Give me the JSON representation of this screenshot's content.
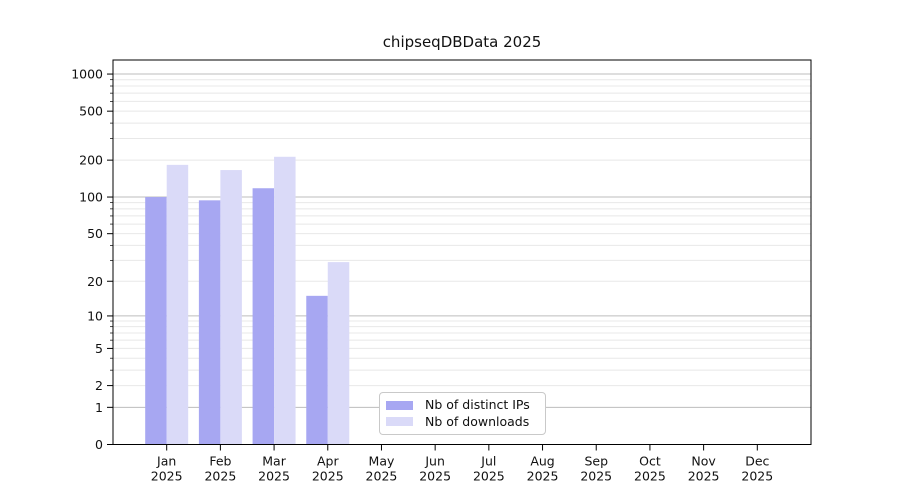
{
  "chart_data": {
    "type": "bar",
    "title": "chipseqDBData 2025",
    "categories": [
      "Jan",
      "Feb",
      "Mar",
      "Apr",
      "May",
      "Jun",
      "Jul",
      "Aug",
      "Sep",
      "Oct",
      "Nov",
      "Dec"
    ],
    "category_year": "2025",
    "series": [
      {
        "name": "Nb of distinct IPs",
        "color": "#a7a7f2",
        "values": [
          100,
          94,
          118,
          15,
          null,
          null,
          null,
          null,
          null,
          null,
          null,
          null
        ]
      },
      {
        "name": "Nb of downloads",
        "color": "#dadaf8",
        "values": [
          183,
          166,
          213,
          29,
          null,
          null,
          null,
          null,
          null,
          null,
          null,
          null
        ]
      }
    ],
    "yscale": "log1p",
    "ytick_values": [
      0,
      1,
      2,
      5,
      10,
      20,
      50,
      100,
      200,
      500,
      1000
    ],
    "ytick_labels": [
      "0",
      "1",
      "2",
      "5",
      "10",
      "20",
      "50",
      "100",
      "200",
      "500",
      "1000"
    ],
    "ylim": [
      0,
      1300
    ],
    "xlim": [
      -1,
      12
    ],
    "grid": {
      "orientation": "horizontal",
      "major_color": "#bdbdbd",
      "minor_color": "#e8e8e8"
    },
    "legend": {
      "position": "inside-bottom-center-left"
    }
  }
}
